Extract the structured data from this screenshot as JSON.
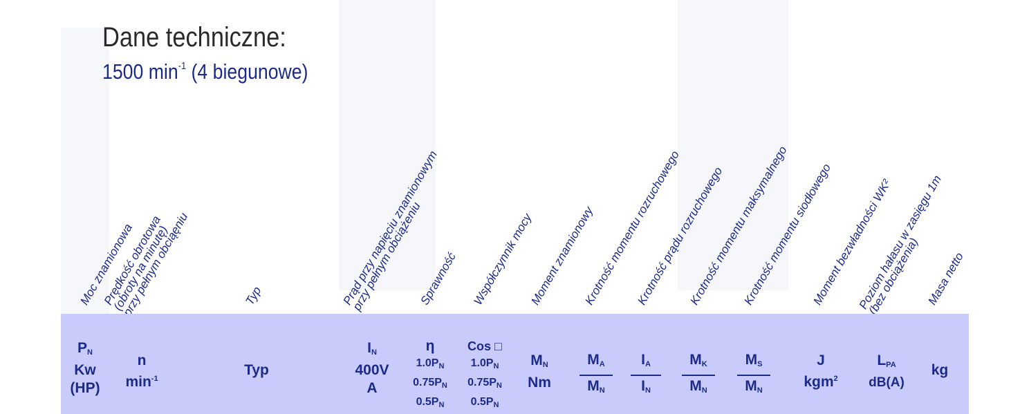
{
  "heading": {
    "title": "Dane techniczne:",
    "subtitle_main": "1500 min",
    "subtitle_sup": "-1",
    "subtitle_rest": " (4 biegunowe)"
  },
  "column_headers": [
    {
      "lines": [
        "Moc znamionowa"
      ]
    },
    {
      "lines": [
        "Prędkość obrotowa",
        "(obroty na minutę)",
        "przy pełnym obciąęniu"
      ]
    },
    {
      "lines": [
        "Typ"
      ]
    },
    {
      "lines": [
        "Prąd przy napięciu znamionowym",
        "przy pełnym obciążeniu"
      ]
    },
    {
      "lines": [
        "Sprawność"
      ]
    },
    {
      "lines": [
        "Współczynnik mocy"
      ]
    },
    {
      "lines": [
        "Moment znamionowy"
      ]
    },
    {
      "lines": [
        "Krotność momentu rozruchowego"
      ]
    },
    {
      "lines": [
        "Krotność prądu rozruchowego"
      ]
    },
    {
      "lines": [
        "Krotność momentu maksymalnego"
      ]
    },
    {
      "lines": [
        "Krotność momentu siodłowego"
      ]
    },
    {
      "lines": [
        "Moment bezwładności WK²"
      ]
    },
    {
      "lines": [
        "Poziom hałasu w zasięgu 1m",
        "(bez obciążenia)"
      ]
    },
    {
      "lines": [
        "Masa netto"
      ]
    }
  ],
  "units": {
    "pn": {
      "sym": "P",
      "sub": "N",
      "l2": "Kw",
      "l3": "(HP)"
    },
    "n": {
      "l1": "n",
      "l2": "min",
      "sup": "-1"
    },
    "typ": "Typ",
    "in": {
      "sym": "I",
      "sub": "N",
      "l2": "400V",
      "l3": "A"
    },
    "eta": {
      "sym": "η",
      "r1": "1.0P",
      "r2": "0.75P",
      "r3": "0.5P",
      "sub": "N"
    },
    "cos": {
      "sym": "Cos □",
      "r1": "1.0P",
      "r2": "0.75P",
      "r3": "0.5P",
      "sub": "N"
    },
    "mn": {
      "sym": "M",
      "sub": "N",
      "l2": "Nm"
    },
    "ma": {
      "num": "M",
      "num_sub": "A",
      "den": "M",
      "den_sub": "N"
    },
    "ia": {
      "num": "I",
      "num_sub": "A",
      "den": "I",
      "den_sub": "N"
    },
    "mk": {
      "num": "M",
      "num_sub": "K",
      "den": "M",
      "den_sub": "N"
    },
    "ms": {
      "num": "M",
      "num_sub": "S",
      "den": "M",
      "den_sub": "N"
    },
    "j": {
      "l1": "J",
      "l2": "kgm",
      "sup": "2"
    },
    "lpa": {
      "sym": "L",
      "sub": "PA",
      "l2": "dB(A)"
    },
    "kg": "kg"
  },
  "colors": {
    "band": "#c9cbfa",
    "text": "#1c2a8a",
    "title": "#2a2a2a"
  }
}
